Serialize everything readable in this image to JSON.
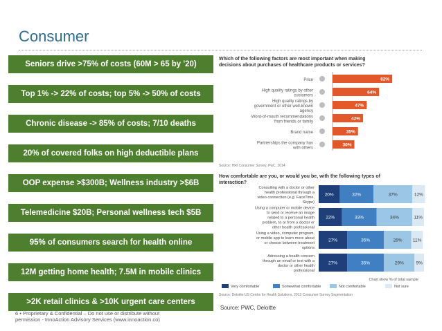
{
  "page": {
    "title": "Consumer",
    "boxes": [
      "Seniors drive >75% of costs (60M > 65 by '20)",
      "Top 1% -> 22% of costs; top 5% -> 50% of costs",
      "Chronic disease -> 85% of costs; 7/10 deaths",
      "20% of covered folks on high deductible plans",
      "OOP expense >$300B;  Wellness industry >$6B",
      "Telemedicine $20B; Personal wellness tech $5B",
      "95% of consumers search for health online",
      "12M getting home health; 7.5M in mobile clinics",
      ">2K retail clinics & >10K urgent care centers"
    ],
    "footer_line1": "6 • Proprietary & Confidential – Do not use or distribute without",
    "footer_line2": "permission - InnoAction Advisory Services (www.innoaction.co)",
    "source_main": "Source: PWC, Deloitte"
  },
  "chart_data": [
    {
      "type": "bar",
      "orientation": "horizontal",
      "title": "Which of the following factors are most important when making decisions about purchases of healthcare products or services?",
      "categories": [
        "Price",
        "High quality ratings by other customers",
        "High quality ratings by government or other well-known agency",
        "Word-of-mouth recommendations from friends or family",
        "Brand name",
        "Partnerships the company has with others"
      ],
      "values": [
        82,
        64,
        47,
        42,
        35,
        30
      ],
      "value_labels": [
        "82%",
        "64%",
        "47%",
        "42%",
        "35%",
        "30%"
      ],
      "color": "#e2582a",
      "source": "Source: HRI Consumer Survey, PwC, 2014",
      "xlim": [
        0,
        100
      ]
    },
    {
      "type": "bar",
      "orientation": "horizontal",
      "stacked": true,
      "title": "How comfortable are you, or would you be, with the following types of interaction?",
      "categories": [
        "Consulting with a doctor or other health professional through a video connection (e.g. FaceTime, Skype)",
        "Using a computer or mobile device to send or receive an image related to a personal health problem, to or from a doctor or other health professional",
        "Using a video, computer program, or mobile app to learn more about or choose between treatment options",
        "Adressing a health concern through an email or text with a doctor or other health professional"
      ],
      "series": [
        {
          "name": "Very comfortable",
          "values": [
            20,
            22,
            27,
            27
          ],
          "color": "#1f3f7a"
        },
        {
          "name": "Somewhat comfortable",
          "values": [
            32,
            33,
            35,
            35
          ],
          "color": "#3f7fc2"
        },
        {
          "name": "Not comfortable",
          "values": [
            37,
            34,
            26,
            29
          ],
          "color": "#9cc6e6"
        },
        {
          "name": "Not sure",
          "values": [
            12,
            11,
            11,
            9
          ],
          "color": "#dbe9f4"
        }
      ],
      "note": "Chart show % of total sample",
      "source": "Source: Deloitte US Centre for Health Solutions, 2013 Consumer Survey Segmentation",
      "xlim": [
        0,
        100
      ]
    }
  ]
}
